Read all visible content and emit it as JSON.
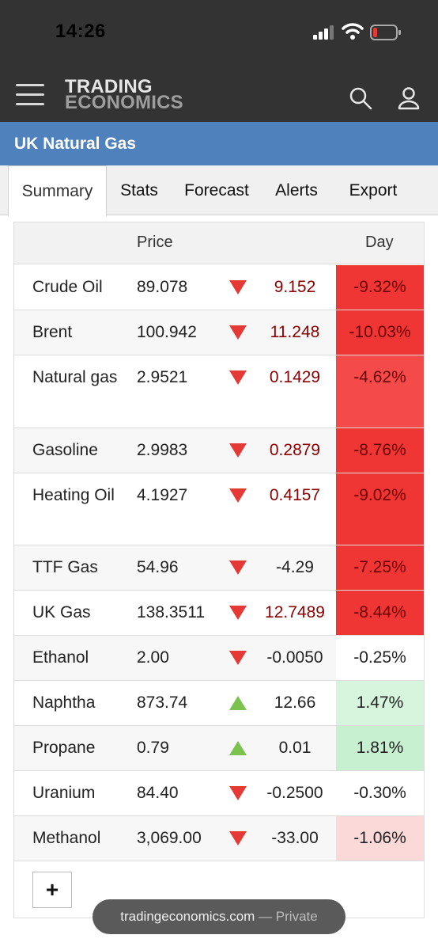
{
  "status_bar": {
    "time": "14:26",
    "signal_icon": "cellular-signal-icon",
    "wifi_icon": "wifi-icon",
    "battery_icon": "battery-low-icon",
    "battery_color": "#e53935"
  },
  "header": {
    "logo_line1": "TRADING",
    "logo_line2": "ECONOMICS",
    "menu_icon": "hamburger-menu-icon",
    "search_icon": "search-icon",
    "user_icon": "user-icon",
    "bg_color": "#333333"
  },
  "page": {
    "title": "UK Natural Gas",
    "title_bar_color": "#4f81bd"
  },
  "tabs": [
    {
      "label": "Summary",
      "active": true
    },
    {
      "label": "Stats",
      "active": false
    },
    {
      "label": "Forecast",
      "active": false
    },
    {
      "label": "Alerts",
      "active": false
    },
    {
      "label": "Export",
      "active": false
    }
  ],
  "table": {
    "headers": {
      "price": "Price",
      "day": "Day"
    },
    "rows": [
      {
        "name": "Crude Oil",
        "price": "89.078",
        "direction": "down",
        "change": "9.152",
        "change_color": "#8b0000",
        "pct": "-9.32%",
        "pct_bg": "#f03535"
      },
      {
        "name": "Brent",
        "price": "100.942",
        "direction": "down",
        "change": "11.248",
        "change_color": "#8b0000",
        "pct": "-10.03%",
        "pct_bg": "#f03535"
      },
      {
        "name": "Natural gas",
        "price": "2.9521",
        "direction": "down",
        "change": "0.1429",
        "change_color": "#8b0000",
        "pct": "-4.62%",
        "pct_bg": "#f44a4a"
      },
      {
        "name": "Gasoline",
        "price": "2.9983",
        "direction": "down",
        "change": "0.2879",
        "change_color": "#8b0000",
        "pct": "-8.76%",
        "pct_bg": "#f03535"
      },
      {
        "name": "Heating Oil",
        "price": "4.1927",
        "direction": "down",
        "change": "0.4157",
        "change_color": "#8b0000",
        "pct": "-9.02%",
        "pct_bg": "#f03535"
      },
      {
        "name": "TTF Gas",
        "price": "54.96",
        "direction": "down",
        "change": "-4.29",
        "change_color": "#222222",
        "pct": "-7.25%",
        "pct_bg": "#f03535"
      },
      {
        "name": "UK Gas",
        "price": "138.3511",
        "direction": "down",
        "change": "12.7489",
        "change_color": "#8b0000",
        "pct": "-8.44%",
        "pct_bg": "#f03535"
      },
      {
        "name": "Ethanol",
        "price": "2.00",
        "direction": "down",
        "change": "-0.0050",
        "change_color": "#222222",
        "pct": "-0.25%",
        "pct_bg": "#ffffff"
      },
      {
        "name": "Naphtha",
        "price": "873.74",
        "direction": "up",
        "change": "12.66",
        "change_color": "#222222",
        "pct": "1.47%",
        "pct_bg": "#d6f5dc"
      },
      {
        "name": "Propane",
        "price": "0.79",
        "direction": "up",
        "change": "0.01",
        "change_color": "#222222",
        "pct": "1.81%",
        "pct_bg": "#c6f0cf"
      },
      {
        "name": "Uranium",
        "price": "84.40",
        "direction": "down",
        "change": "-0.2500",
        "change_color": "#222222",
        "pct": "-0.30%",
        "pct_bg": "#ffffff"
      },
      {
        "name": "Methanol",
        "price": "3,069.00",
        "direction": "down",
        "change": "-33.00",
        "change_color": "#222222",
        "pct": "-1.06%",
        "pct_bg": "#fbd9d9"
      }
    ],
    "add_button_label": "+",
    "down_color": "#e53935",
    "up_color": "#7cc24e"
  },
  "browser": {
    "url": "tradingeconomics.com",
    "mode": "— Private"
  }
}
